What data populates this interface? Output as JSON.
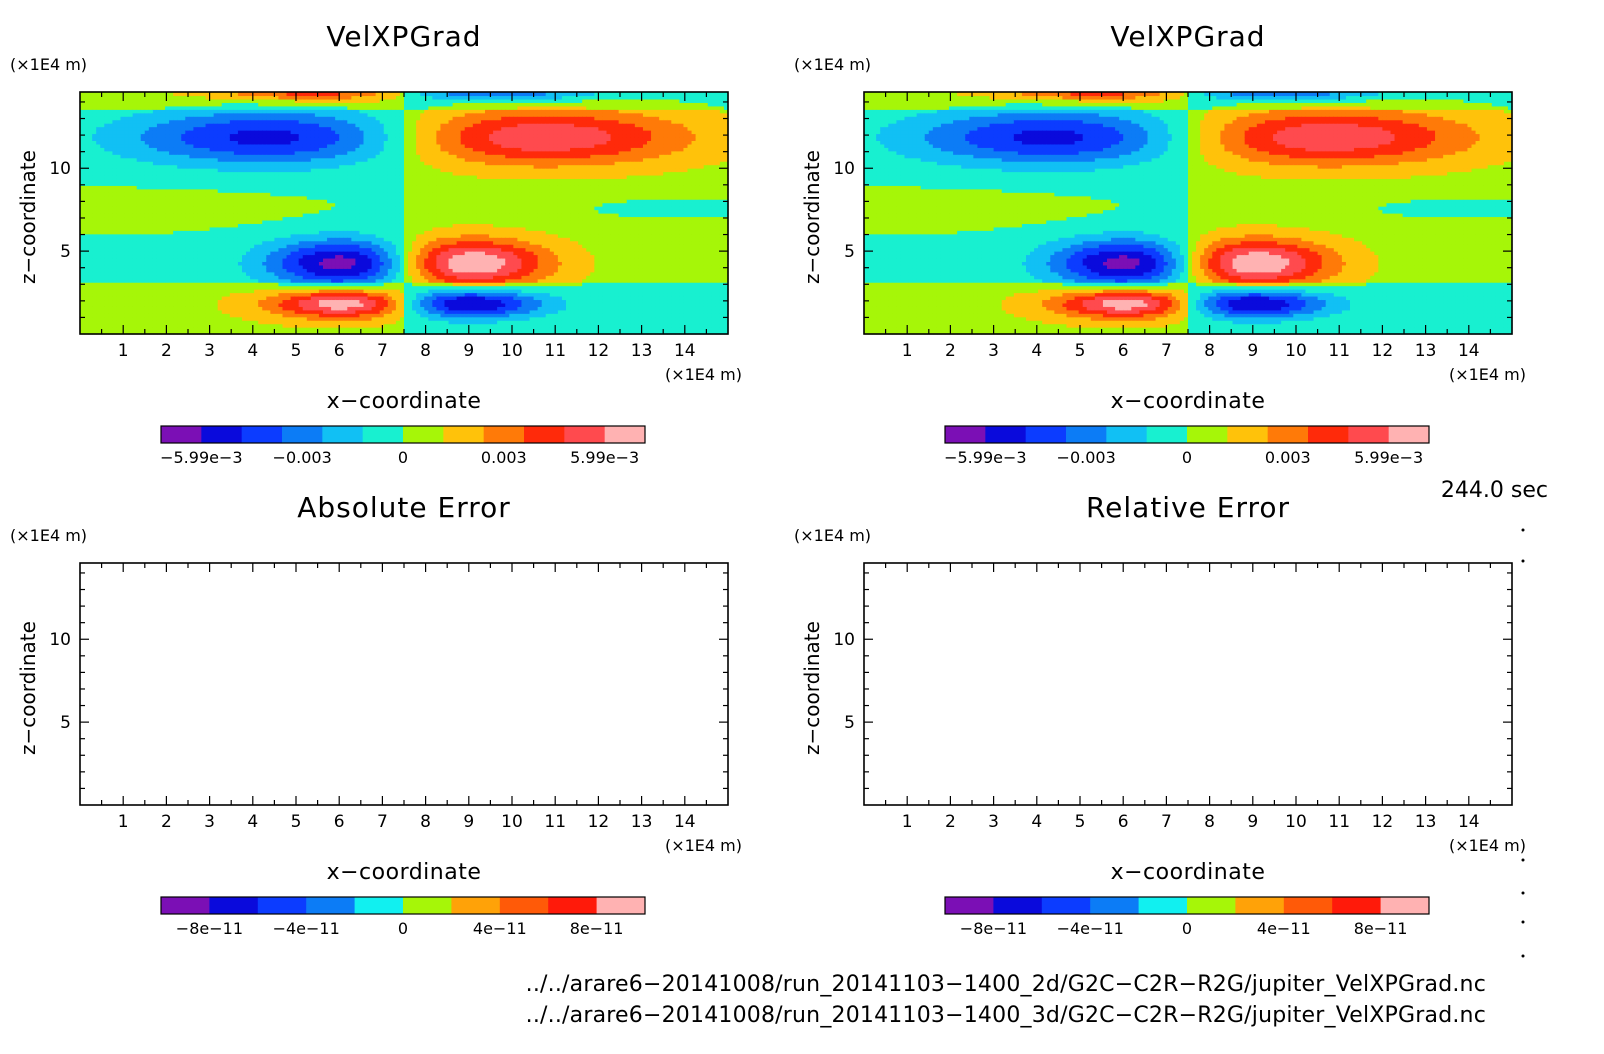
{
  "chart_data": [
    {
      "type": "heatmap",
      "title": "VelXPGrad",
      "xlabel": "x−coordinate",
      "ylabel": "z−coordinate",
      "x_unit": "(×1E4 m)",
      "y_unit": "(×1E4 m)",
      "xlim": [
        0,
        15
      ],
      "ylim": [
        0,
        14.6
      ],
      "x_ticks": [
        "1",
        "2",
        "3",
        "4",
        "5",
        "6",
        "7",
        "8",
        "9",
        "10",
        "11",
        "12",
        "13",
        "14"
      ],
      "y_ticks": [
        "5",
        "10"
      ],
      "grid": false,
      "field_features": [
        {
          "sign": "negative",
          "x": 6.3,
          "z": 4.2,
          "peak": -0.00599
        },
        {
          "sign": "positive",
          "x": 8.8,
          "z": 4.2,
          "peak": 0.00599
        },
        {
          "sign": "positive",
          "x": 6.3,
          "z": 1.9,
          "peak": 0.005
        },
        {
          "sign": "negative",
          "x": 8.8,
          "z": 1.9,
          "peak": -0.0055
        },
        {
          "sign": "negative",
          "x": 4.5,
          "z": 12.0,
          "peak": -0.0045
        },
        {
          "sign": "positive",
          "x": 10.5,
          "z": 12.0,
          "peak": 0.0045
        }
      ],
      "colorbar": {
        "min": -0.00599,
        "max": 0.00599,
        "tick_labels": [
          "−5.99e−3",
          "−0.003",
          "0",
          "0.003",
          "5.99e−3"
        ],
        "colors": [
          "#7b0fb5",
          "#0a0adc",
          "#0c3cff",
          "#0c7cf6",
          "#11c0f4",
          "#18f0d0",
          "#a6f608",
          "#ffc20a",
          "#ff7a08",
          "#ff2a0a",
          "#ff4a4e",
          "#ffb2b2"
        ]
      }
    },
    {
      "type": "heatmap",
      "title": "VelXPGrad",
      "xlabel": "x−coordinate",
      "ylabel": "z−coordinate",
      "x_unit": "(×1E4 m)",
      "y_unit": "(×1E4 m)",
      "xlim": [
        0,
        15
      ],
      "ylim": [
        0,
        14.6
      ],
      "x_ticks": [
        "1",
        "2",
        "3",
        "4",
        "5",
        "6",
        "7",
        "8",
        "9",
        "10",
        "11",
        "12",
        "13",
        "14"
      ],
      "y_ticks": [
        "5",
        "10"
      ],
      "grid": false,
      "field_features": [
        {
          "sign": "negative",
          "x": 6.3,
          "z": 4.2,
          "peak": -0.00599
        },
        {
          "sign": "positive",
          "x": 8.8,
          "z": 4.2,
          "peak": 0.00599
        },
        {
          "sign": "positive",
          "x": 6.3,
          "z": 1.9,
          "peak": 0.005
        },
        {
          "sign": "negative",
          "x": 8.8,
          "z": 1.9,
          "peak": -0.0055
        },
        {
          "sign": "negative",
          "x": 4.5,
          "z": 12.0,
          "peak": -0.0045
        },
        {
          "sign": "positive",
          "x": 10.5,
          "z": 12.0,
          "peak": 0.0045
        }
      ],
      "colorbar": {
        "min": -0.00599,
        "max": 0.00599,
        "tick_labels": [
          "−5.99e−3",
          "−0.003",
          "0",
          "0.003",
          "5.99e−3"
        ],
        "colors": [
          "#7b0fb5",
          "#0a0adc",
          "#0c3cff",
          "#0c7cf6",
          "#11c0f4",
          "#18f0d0",
          "#a6f608",
          "#ffc20a",
          "#ff7a08",
          "#ff2a0a",
          "#ff4a4e",
          "#ffb2b2"
        ]
      }
    },
    {
      "type": "heatmap",
      "title": "Absolute Error",
      "xlabel": "x−coordinate",
      "ylabel": "z−coordinate",
      "x_unit": "(×1E4 m)",
      "y_unit": "(×1E4 m)",
      "xlim": [
        0,
        15
      ],
      "ylim": [
        0,
        14.6
      ],
      "x_ticks": [
        "1",
        "2",
        "3",
        "4",
        "5",
        "6",
        "7",
        "8",
        "9",
        "10",
        "11",
        "12",
        "13",
        "14"
      ],
      "y_ticks": [
        "5",
        "10"
      ],
      "grid": false,
      "field_features": [],
      "colorbar": {
        "min": -1e-10,
        "max": 1e-10,
        "tick_labels": [
          "−8e−11",
          "−4e−11",
          "0",
          "4e−11",
          "8e−11"
        ],
        "colors": [
          "#7b0fb5",
          "#0a0adc",
          "#0c3cff",
          "#0c7cf6",
          "#11f0f0",
          "#a6f608",
          "#ffa208",
          "#ff5a08",
          "#ff1a0a",
          "#ffb2b2"
        ]
      }
    },
    {
      "type": "heatmap",
      "title": "Relative Error",
      "xlabel": "x−coordinate",
      "ylabel": "z−coordinate",
      "x_unit": "(×1E4 m)",
      "y_unit": "(×1E4 m)",
      "xlim": [
        0,
        15
      ],
      "ylim": [
        0,
        14.6
      ],
      "x_ticks": [
        "1",
        "2",
        "3",
        "4",
        "5",
        "6",
        "7",
        "8",
        "9",
        "10",
        "11",
        "12",
        "13",
        "14"
      ],
      "y_ticks": [
        "5",
        "10"
      ],
      "grid": false,
      "field_features": [],
      "colorbar": {
        "min": -1e-10,
        "max": 1e-10,
        "tick_labels": [
          "−8e−11",
          "−4e−11",
          "0",
          "4e−11",
          "8e−11"
        ],
        "colors": [
          "#7b0fb5",
          "#0a0adc",
          "#0c3cff",
          "#0c7cf6",
          "#11f0f0",
          "#a6f608",
          "#ffa208",
          "#ff5a08",
          "#ff1a0a",
          "#ffb2b2"
        ]
      }
    }
  ],
  "time_label": "244.0 sec",
  "files": [
    "../../arare6−20141008/run_20141103−1400_2d/G2C−C2R−R2G/jupiter_VelXPGrad.nc",
    "../../arare6−20141008/run_20141103−1400_3d/G2C−C2R−R2G/jupiter_VelXPGrad.nc"
  ]
}
